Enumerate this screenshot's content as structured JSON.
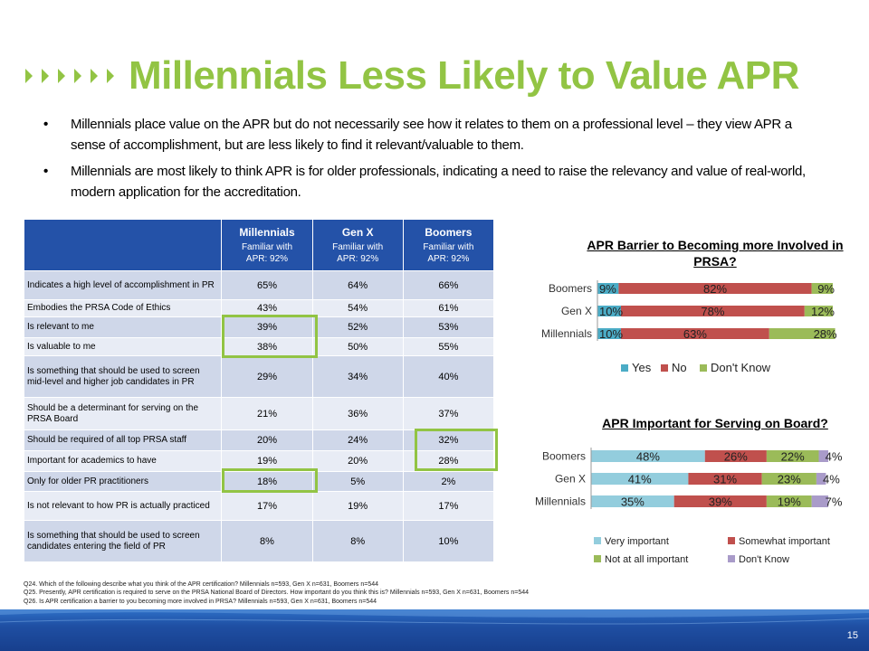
{
  "title": "Millennials Less Likely to Value APR",
  "bullets": [
    "Millennials place value on the APR but do not necessarily see how it relates to them on a professional level –  they view APR a sense of accomplishment, but are less likely to find it relevant/valuable to them.",
    "Millennials are most likely to think APR is for older professionals, indicating a need to raise the relevancy and value of real-world, modern application for the accreditation."
  ],
  "table": {
    "headers": [
      {
        "group": "Millennials",
        "line1": "Familiar with",
        "line2": "APR: 92%"
      },
      {
        "group": "Gen X",
        "line1": "Familiar with",
        "line2": "APR: 92%"
      },
      {
        "group": "Boomers",
        "line1": "Familiar with",
        "line2": "APR: 92%"
      }
    ],
    "rows": [
      {
        "label": "Indicates a high level of accomplishment in PR",
        "values": [
          "65%",
          "64%",
          "66%"
        ]
      },
      {
        "label": "Embodies the PRSA Code of Ethics",
        "values": [
          "43%",
          "54%",
          "61%"
        ]
      },
      {
        "label": "Is relevant to me",
        "values": [
          "39%",
          "52%",
          "53%"
        ]
      },
      {
        "label": "Is valuable to me",
        "values": [
          "38%",
          "50%",
          "55%"
        ]
      },
      {
        "label": "Is something that should be used to screen mid-level and higher job candidates in PR",
        "values": [
          "29%",
          "34%",
          "40%"
        ]
      },
      {
        "label": "Should be a determinant for serving on the PRSA Board",
        "values": [
          "21%",
          "36%",
          "37%"
        ]
      },
      {
        "label": "Should be required of all top PRSA staff",
        "values": [
          "20%",
          "24%",
          "32%"
        ]
      },
      {
        "label": "Important for academics to have",
        "values": [
          "19%",
          "20%",
          "28%"
        ]
      },
      {
        "label": "Only for older PR practitioners",
        "values": [
          "18%",
          "5%",
          "2%"
        ]
      },
      {
        "label": "Is not relevant to how PR is actually practiced",
        "values": [
          "17%",
          "19%",
          "17%"
        ]
      },
      {
        "label": "Is something that should be used to screen candidates entering the field of PR",
        "values": [
          "8%",
          "8%",
          "10%"
        ]
      }
    ]
  },
  "chart_data": [
    {
      "type": "bar",
      "orientation": "horizontal",
      "stacked": true,
      "title": "APR Barrier to Becoming more Involved in PRSA?",
      "categories": [
        "Boomers",
        "Gen X",
        "Millennials"
      ],
      "series": [
        {
          "name": "Yes",
          "color": "#4bacc6",
          "values": [
            9,
            10,
            10
          ],
          "labels": [
            "9%",
            "10%",
            "10%"
          ]
        },
        {
          "name": "No",
          "color": "#c0504d",
          "values": [
            82,
            78,
            63
          ],
          "labels": [
            "82%",
            "78%",
            "63%"
          ]
        },
        {
          "name": "Don't Know",
          "color": "#9bbb59",
          "values": [
            9,
            12,
            28
          ],
          "labels": [
            "9%",
            "12%",
            "28%"
          ]
        }
      ],
      "legend": "bottom"
    },
    {
      "type": "bar",
      "orientation": "horizontal",
      "stacked": true,
      "title": "APR Important for Serving on Board?",
      "categories": [
        "Boomers",
        "Gen X",
        "Millennials"
      ],
      "series": [
        {
          "name": "Very important",
          "color": "#93cddd",
          "values": [
            48,
            41,
            35
          ],
          "labels": [
            "48%",
            "41%",
            "35%"
          ]
        },
        {
          "name": "Somewhat important",
          "color": "#c0504d",
          "values": [
            26,
            31,
            39
          ],
          "labels": [
            "26%",
            "31%",
            "39%"
          ]
        },
        {
          "name": "Not at all important",
          "color": "#9bbb59",
          "values": [
            22,
            23,
            19
          ],
          "labels": [
            "22%",
            "23%",
            "19%"
          ]
        },
        {
          "name": "Don't Know",
          "color": "#a99bc9",
          "values": [
            4,
            4,
            7
          ],
          "labels": [
            "4%",
            "4%",
            "7%"
          ]
        }
      ],
      "legend": "bottom"
    }
  ],
  "footnotes": [
    "Q24. Which of the following describe what you think of the APR certification? Millennials n=593, Gen X n=631, Boomers n=544",
    "Q25. Presently, APR certification is required to serve on the PRSA National Board of Directors. How important do you think this is? Millennials n=593, Gen X n=631, Boomers n=544",
    "Q26. Is APR certification a barrier to you becoming more involved in PRSA? Millennials n=593, Gen X n=631, Boomers n=544"
  ],
  "page_number": "15",
  "colors": {
    "title": "#92c444",
    "table_header": "#2452a8",
    "highlight": "#92c444"
  }
}
